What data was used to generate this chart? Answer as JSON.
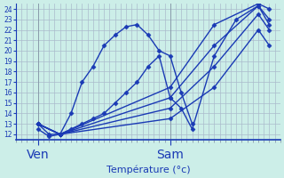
{
  "xlabel": "Température (°c)",
  "ylim": [
    11.5,
    24.5
  ],
  "yticks": [
    12,
    13,
    14,
    15,
    16,
    17,
    18,
    19,
    20,
    21,
    22,
    23,
    24
  ],
  "xlim": [
    0,
    48
  ],
  "ven_x": 4,
  "sam_x": 28,
  "background_color": "#cceee8",
  "grid_color": "#aabbcc",
  "line_color": "#1a3ab5",
  "marker": "D",
  "markersize": 2.5,
  "linewidth": 1.0,
  "lines": [
    {
      "x": [
        4,
        6,
        8,
        10,
        12,
        14,
        16,
        18,
        20,
        22,
        24,
        26,
        28,
        30,
        32
      ],
      "y": [
        13.0,
        12.0,
        12.0,
        14.0,
        17.0,
        18.5,
        20.5,
        21.5,
        22.3,
        22.5,
        21.5,
        20.0,
        19.5,
        16.0,
        13.0
      ]
    },
    {
      "x": [
        4,
        6,
        8,
        10,
        12,
        14,
        16,
        18,
        20,
        22,
        24,
        26,
        28,
        30,
        32,
        36,
        40,
        44,
        46
      ],
      "y": [
        12.5,
        11.8,
        12.0,
        12.5,
        13.0,
        13.5,
        14.0,
        15.0,
        16.0,
        17.0,
        18.5,
        19.5,
        15.5,
        14.5,
        12.5,
        19.5,
        23.0,
        24.3,
        23.0
      ]
    },
    {
      "x": [
        4,
        8,
        28,
        36,
        44,
        46
      ],
      "y": [
        13.0,
        12.0,
        13.5,
        16.5,
        22.0,
        20.5
      ]
    },
    {
      "x": [
        4,
        8,
        28,
        36,
        44,
        46
      ],
      "y": [
        13.0,
        12.0,
        14.5,
        18.5,
        23.5,
        22.0
      ]
    },
    {
      "x": [
        4,
        8,
        28,
        36,
        44,
        46
      ],
      "y": [
        13.0,
        12.0,
        15.5,
        20.5,
        24.3,
        22.5
      ]
    },
    {
      "x": [
        4,
        8,
        28,
        36,
        44,
        46
      ],
      "y": [
        13.0,
        12.0,
        16.5,
        22.5,
        24.5,
        24.0
      ]
    }
  ],
  "minor_xticks_step": 1,
  "major_xticks": [
    4,
    28
  ],
  "major_xtick_labels": [
    "Ven",
    "Sam"
  ]
}
